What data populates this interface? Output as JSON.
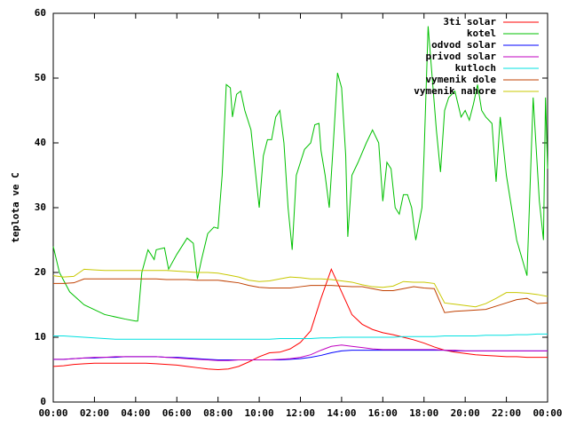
{
  "chart_data": {
    "type": "line",
    "ylabel": "teplota ve C",
    "xlim": [
      0,
      24
    ],
    "xticks": [
      {
        "value": 0,
        "label": "00:00"
      },
      {
        "value": 2,
        "label": "02:00"
      },
      {
        "value": 4,
        "label": "04:00"
      },
      {
        "value": 6,
        "label": "06:00"
      },
      {
        "value": 8,
        "label": "08:00"
      },
      {
        "value": 10,
        "label": "10:00"
      },
      {
        "value": 12,
        "label": "12:00"
      },
      {
        "value": 14,
        "label": "14:00"
      },
      {
        "value": 16,
        "label": "16:00"
      },
      {
        "value": 18,
        "label": "18:00"
      },
      {
        "value": 20,
        "label": "20:00"
      },
      {
        "value": 22,
        "label": "22:00"
      },
      {
        "value": 24,
        "label": "00:00"
      }
    ],
    "ylim": [
      0,
      60
    ],
    "yticks": [
      0,
      10,
      20,
      30,
      40,
      50,
      60
    ],
    "legend": "top-right",
    "x": [
      0,
      0.5,
      1,
      1.5,
      2,
      2.5,
      3,
      3.5,
      4,
      4.5,
      5,
      5.5,
      6,
      6.5,
      7,
      7.5,
      8,
      8.5,
      9,
      9.5,
      10,
      10.5,
      11,
      11.5,
      12,
      12.5,
      13,
      13.5,
      14,
      14.5,
      15,
      15.5,
      16,
      16.5,
      17,
      17.5,
      18,
      18.5,
      19,
      19.5,
      20,
      20.5,
      21,
      21.5,
      22,
      22.5,
      23,
      23.5,
      24
    ],
    "series": [
      {
        "name": "3ti solar",
        "color": "#ff0000",
        "values": [
          5.5,
          5.6,
          5.8,
          5.9,
          6,
          6,
          6,
          6,
          6,
          6,
          5.9,
          5.8,
          5.7,
          5.5,
          5.3,
          5.1,
          5.0,
          5.1,
          5.5,
          6.2,
          7.0,
          7.6,
          7.7,
          8.2,
          9.2,
          11,
          16,
          20.5,
          17,
          13.5,
          12,
          11.2,
          10.7,
          10.4,
          10,
          9.6,
          9.1,
          8.5,
          8.0,
          7.7,
          7.5,
          7.3,
          7.2,
          7.1,
          7.0,
          7.0,
          6.9,
          6.9,
          6.9
        ]
      },
      {
        "name": "kotel",
        "color": "#00c000",
        "x": [
          0,
          0.3,
          0.8,
          1.5,
          2.5,
          3.5,
          4,
          4.1,
          4.3,
          4.6,
          4.9,
          5,
          5.4,
          5.6,
          6,
          6.5,
          6.8,
          7,
          7.2,
          7.5,
          7.8,
          8,
          8.2,
          8.4,
          8.6,
          8.7,
          8.9,
          9.1,
          9.3,
          9.6,
          9.8,
          10,
          10.2,
          10.4,
          10.6,
          10.8,
          11,
          11.2,
          11.4,
          11.6,
          11.8,
          12,
          12.2,
          12.5,
          12.7,
          12.9,
          13,
          13.2,
          13.4,
          13.6,
          13.8,
          14,
          14.2,
          14.3,
          14.5,
          14.8,
          15.2,
          15.5,
          15.8,
          16,
          16.2,
          16.4,
          16.6,
          16.8,
          17,
          17.2,
          17.4,
          17.6,
          17.9,
          18,
          18.2,
          18.6,
          18.8,
          19,
          19.2,
          19.5,
          19.8,
          20,
          20.2,
          20.4,
          20.6,
          20.8,
          21,
          21.3,
          21.5,
          21.7,
          22,
          22.5,
          23,
          23.3,
          23.6,
          23.8,
          23.9,
          24
        ],
        "values": [
          24,
          20,
          17,
          15,
          13.5,
          12.8,
          12.5,
          12.5,
          20,
          23.5,
          22,
          23.5,
          23.8,
          20.5,
          22.8,
          25.3,
          24.5,
          19,
          22,
          26,
          27,
          26.8,
          35,
          49,
          48.5,
          44,
          47.5,
          48,
          45,
          42,
          36,
          30,
          38,
          40.5,
          40.5,
          44,
          45,
          40,
          30,
          23.5,
          35,
          37,
          39,
          40,
          42.8,
          43,
          38.8,
          35,
          30,
          40,
          50.8,
          48.5,
          38,
          25.5,
          35,
          37,
          40,
          42,
          40,
          31,
          37,
          36,
          30,
          29,
          32,
          32,
          30,
          25,
          30,
          38,
          58,
          42,
          35.5,
          45,
          47,
          48,
          44,
          45,
          43.5,
          46,
          49,
          45,
          44,
          43,
          34,
          44,
          35,
          25,
          19.5,
          47,
          31,
          25,
          47,
          36
        ]
      },
      {
        "name": "odvod solar",
        "color": "#0000ff",
        "values": [
          6.6,
          6.6,
          6.7,
          6.8,
          6.8,
          6.9,
          6.9,
          7.0,
          7.0,
          7.0,
          7.0,
          6.9,
          6.9,
          6.8,
          6.7,
          6.6,
          6.5,
          6.5,
          6.5,
          6.5,
          6.5,
          6.5,
          6.5,
          6.6,
          6.7,
          6.9,
          7.2,
          7.6,
          7.9,
          8.0,
          8.0,
          8.0,
          8.0,
          8.0,
          8.0,
          8.0,
          8.0,
          8.0,
          8.0,
          7.9,
          7.9,
          7.9,
          7.9,
          7.9,
          7.9,
          7.9,
          7.9,
          7.9,
          7.9
        ]
      },
      {
        "name": "privod solar",
        "color": "#c000c0",
        "values": [
          6.6,
          6.6,
          6.7,
          6.8,
          6.9,
          6.9,
          7.0,
          7.0,
          7.0,
          7.0,
          7.0,
          6.9,
          6.8,
          6.7,
          6.6,
          6.5,
          6.4,
          6.4,
          6.5,
          6.5,
          6.5,
          6.5,
          6.6,
          6.7,
          6.9,
          7.3,
          8.0,
          8.6,
          8.8,
          8.6,
          8.4,
          8.2,
          8.1,
          8.1,
          8.1,
          8.1,
          8.1,
          8.1,
          8.0,
          8.0,
          7.9,
          7.9,
          7.9,
          7.9,
          7.9,
          7.9,
          7.9,
          7.9,
          7.9
        ]
      },
      {
        "name": "kutloch",
        "color": "#00e0e0",
        "values": [
          10.2,
          10.2,
          10.1,
          10.0,
          9.9,
          9.8,
          9.7,
          9.7,
          9.7,
          9.7,
          9.7,
          9.7,
          9.7,
          9.7,
          9.7,
          9.7,
          9.7,
          9.7,
          9.7,
          9.7,
          9.7,
          9.7,
          9.8,
          9.8,
          9.8,
          9.8,
          9.9,
          9.9,
          10.0,
          10.0,
          10.0,
          10.0,
          10.0,
          10.0,
          10.1,
          10.1,
          10.1,
          10.1,
          10.2,
          10.2,
          10.2,
          10.2,
          10.3,
          10.3,
          10.3,
          10.4,
          10.4,
          10.5,
          10.5
        ]
      },
      {
        "name": "vymenik dole",
        "color": "#c04000",
        "values": [
          18.3,
          18.3,
          18.4,
          19.0,
          19.0,
          19.0,
          19.0,
          19.0,
          19.0,
          19.0,
          19.0,
          18.9,
          18.9,
          18.9,
          18.8,
          18.8,
          18.8,
          18.6,
          18.4,
          18.0,
          17.7,
          17.6,
          17.6,
          17.6,
          17.8,
          18.0,
          18.0,
          18.0,
          17.9,
          17.8,
          17.8,
          17.5,
          17.2,
          17.2,
          17.5,
          17.8,
          17.6,
          17.5,
          13.8,
          14.0,
          14.1,
          14.2,
          14.3,
          14.8,
          15.3,
          15.8,
          16.0,
          15.2,
          15.3
        ]
      },
      {
        "name": "vymenik nahore",
        "color": "#c8c800",
        "values": [
          19.5,
          19.3,
          19.4,
          20.5,
          20.4,
          20.3,
          20.3,
          20.3,
          20.3,
          20.3,
          20.3,
          20.3,
          20.2,
          20.1,
          20.0,
          20.0,
          19.9,
          19.6,
          19.3,
          18.8,
          18.6,
          18.7,
          19.0,
          19.3,
          19.2,
          19.0,
          19.0,
          18.9,
          18.7,
          18.5,
          18.1,
          17.8,
          17.7,
          17.9,
          18.6,
          18.5,
          18.5,
          18.3,
          15.3,
          15.1,
          14.9,
          14.7,
          15.2,
          16.0,
          16.9,
          16.9,
          16.8,
          16.6,
          16.3
        ]
      }
    ]
  }
}
